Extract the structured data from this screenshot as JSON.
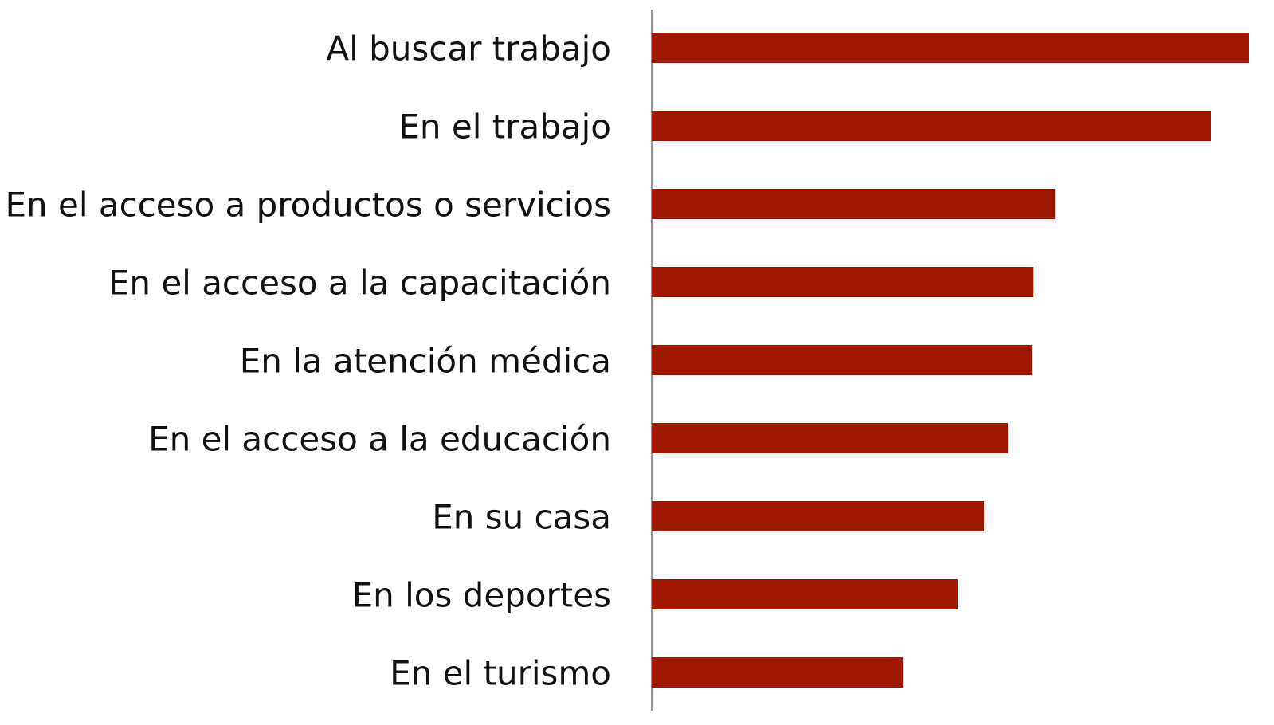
{
  "chart_data": {
    "type": "barh",
    "categories": [
      "Al buscar trabajo",
      "En el trabajo",
      "En el acceso a productos o servicios",
      "En el acceso a la capacitación",
      "En la atención médica",
      "En el acceso a la educación",
      "En su casa",
      "En los deportes",
      "En el turismo"
    ],
    "values": [
      100,
      93.6,
      67.5,
      63.9,
      63.6,
      59.6,
      55.6,
      51.2,
      42
    ],
    "color": "#a01800",
    "xlim": [
      0,
      100
    ]
  }
}
